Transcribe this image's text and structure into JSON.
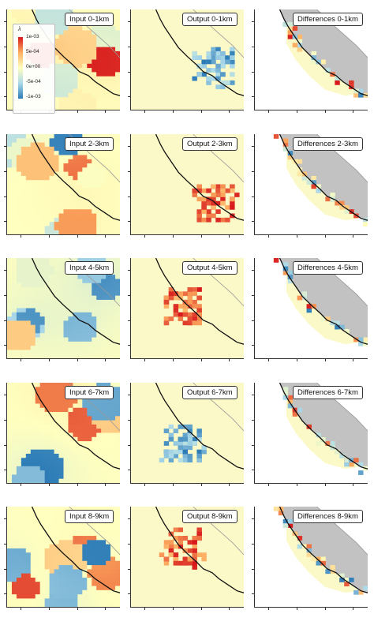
{
  "chart_data": {
    "type": "heatmap",
    "column_types": [
      "Input",
      "Output",
      "Differences"
    ],
    "rows": [
      {
        "range": "0-1km",
        "labels": {
          "input": "Input  0-1km",
          "output": "Output  0-1km",
          "differences": "Differences  0-1km"
        }
      },
      {
        "range": "2-3km",
        "labels": {
          "input": "Input  2-3km",
          "output": "Output  2-3km",
          "differences": "Differences  2-3km"
        }
      },
      {
        "range": "4-5km",
        "labels": {
          "input": "Input  4-5km",
          "output": "Output  4-5km",
          "differences": "Differences  4-5km"
        }
      },
      {
        "range": "6-7km",
        "labels": {
          "input": "Input  6-7km",
          "output": "Output  6-7km",
          "differences": "Differences  6-7km"
        }
      },
      {
        "range": "8-9km",
        "labels": {
          "input": "Input  8-9km",
          "output": "Output  8-9km",
          "differences": "Differences  8-9km"
        }
      }
    ],
    "colorbar": {
      "title": "λ",
      "ticks": [
        "1e-03",
        "5e-04",
        "0e+00",
        "-5e-04",
        "-1e-03"
      ],
      "range": [
        -0.001,
        0.001
      ],
      "colors": [
        "#d7191c",
        "#fdae61",
        "#ffffbf",
        "#abd9e9",
        "#2c7bb6"
      ]
    },
    "colors": {
      "land": "#fcf9c8",
      "ocean_masked": "#c2c2c2",
      "coastline": "#111111"
    }
  }
}
